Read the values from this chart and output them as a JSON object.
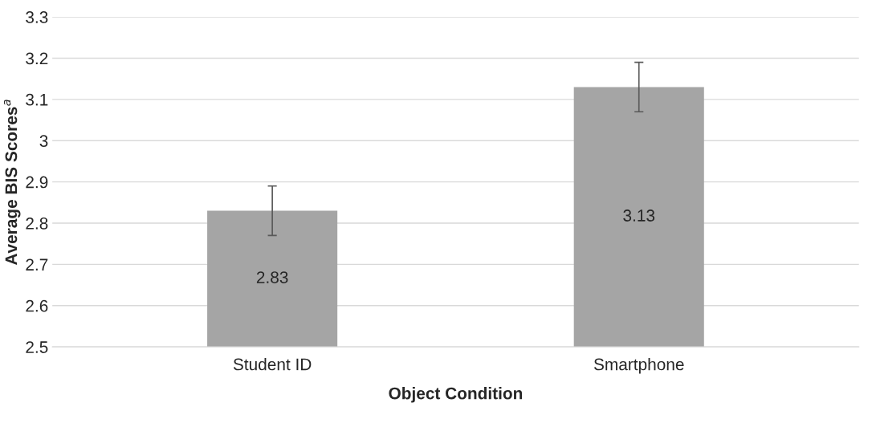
{
  "chart_data": {
    "type": "bar",
    "xlabel": "Object Condition",
    "ylabel": "Average BIS Scores$^{a}$",
    "categories": [
      "Student ID",
      "Smartphone"
    ],
    "values": [
      2.83,
      3.13
    ],
    "errors": [
      0.06,
      0.06
    ],
    "color": "#a5a5a5",
    "ylim": [
      2.5,
      3.3
    ],
    "yticks": [
      2.5,
      2.6,
      2.7,
      2.8,
      2.9,
      3,
      3.1,
      3.2,
      3.3
    ],
    "grid": "y",
    "data_labels": true
  }
}
